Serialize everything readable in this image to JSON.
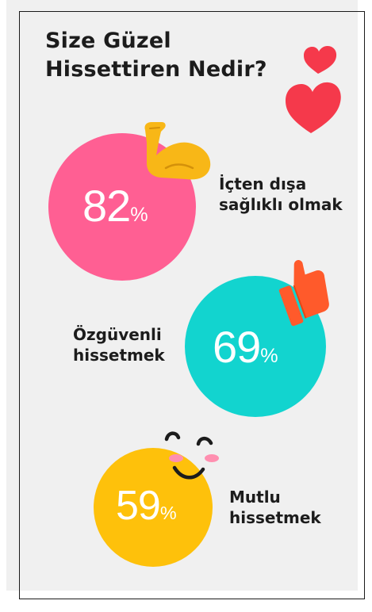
{
  "title": {
    "line1": "Size Güzel",
    "line2": "Hissettiren Nedir?"
  },
  "chart_data": {
    "type": "bubble",
    "title": "Size Güzel Hissettiren Nedir?",
    "unit": "%",
    "items": [
      {
        "label_lines": [
          "İçten dışa",
          "sağlıklı olmak"
        ],
        "value": 82,
        "color": "#ff5f93",
        "icon": "flexed-biceps-icon"
      },
      {
        "label_lines": [
          "Özgüvenli",
          "hissetmek"
        ],
        "value": 69,
        "color": "#12d4cf",
        "icon": "thumbs-up-icon"
      },
      {
        "label_lines": [
          "Mutlu",
          "hissetmek"
        ],
        "value": 59,
        "color": "#fec10b",
        "icon": "smiling-face-icon"
      }
    ]
  },
  "decorations": {
    "hearts_icon": "two-hearts-icon",
    "heart_color": "#f5394b"
  }
}
